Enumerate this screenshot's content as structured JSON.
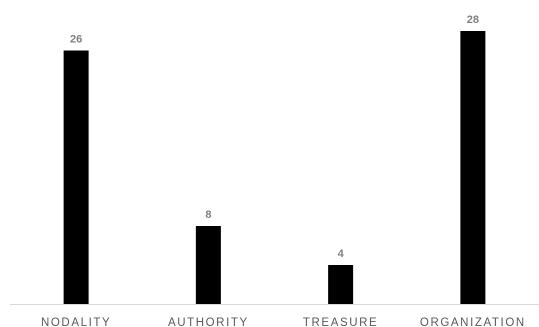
{
  "chart_data": {
    "type": "bar",
    "title": "",
    "xlabel": "",
    "ylabel": "",
    "categories": [
      "NODALITY",
      "AUTHORITY",
      "TREASURE",
      "ORGANIZATION"
    ],
    "values": [
      26,
      8,
      4,
      28
    ],
    "ylim": [
      0,
      28
    ],
    "grid": false,
    "legend": "none",
    "bar_color": "#000000",
    "data_label_color": "#7f7f7f",
    "tick_label_color": "#595959",
    "axis_color": "#d9d9d9"
  }
}
